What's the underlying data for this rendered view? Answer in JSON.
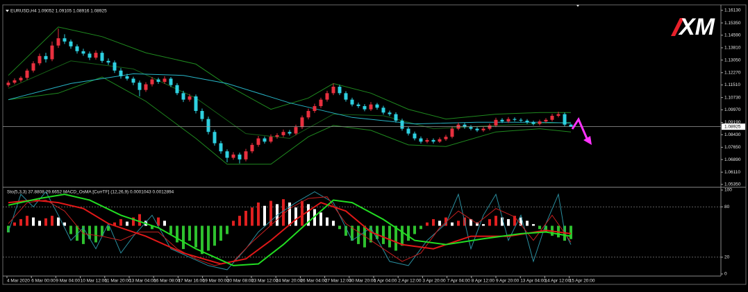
{
  "logo": "XM",
  "chart_data": [
    {
      "type": "candlestick",
      "title": "EURUSD,H4  1.09052 1.09105 1.08916 1.08925",
      "colors": {
        "up": "#e8303e",
        "down": "#2ed0e0"
      },
      "ylim": [
        1.0526,
        1.1634
      ],
      "yticks": [
        {
          "value": 1.1613,
          "label": "1.16130"
        },
        {
          "value": 1.1535,
          "label": "1.15350"
        },
        {
          "value": 1.1459,
          "label": "1.14590"
        },
        {
          "value": 1.1381,
          "label": "1.13810"
        },
        {
          "value": 1.1305,
          "label": "1.13050"
        },
        {
          "value": 1.1227,
          "label": "1.12270"
        },
        {
          "value": 1.1151,
          "label": "1.11510"
        },
        {
          "value": 1.1073,
          "label": "1.10730"
        },
        {
          "value": 1.0997,
          "label": "1.09970"
        },
        {
          "value": 1.0919,
          "label": "1.09190"
        },
        {
          "value": 1.0843,
          "label": "1.08430"
        },
        {
          "value": 1.0765,
          "label": "1.07650"
        },
        {
          "value": 1.0689,
          "label": "1.06890"
        },
        {
          "value": 1.0611,
          "label": "1.06110"
        },
        {
          "value": 1.0535,
          "label": "1.05350"
        }
      ],
      "current_price": {
        "value": 1.08925,
        "label": "1.08925"
      },
      "open": [
        1.115,
        1.1165,
        1.118,
        1.1195,
        1.124,
        1.1285,
        1.133,
        1.131,
        1.1395,
        1.144,
        1.142,
        1.139,
        1.136,
        1.1345,
        1.132,
        1.135,
        1.13,
        1.129,
        1.124,
        1.1205,
        1.119,
        1.1165,
        1.112,
        1.1155,
        1.1185,
        1.117,
        1.119,
        1.115,
        1.11,
        1.106,
        1.108,
        1.099,
        1.094,
        1.086,
        1.079,
        1.074,
        1.07,
        1.072,
        1.069,
        1.074,
        1.078,
        1.082,
        1.08,
        1.083,
        1.084,
        1.086,
        1.085,
        1.089,
        1.095,
        1.099,
        1.102,
        1.106,
        1.11,
        1.114,
        1.11,
        1.106,
        1.103,
        1.102,
        1.1,
        1.103,
        1.101,
        1.098,
        1.097,
        1.093,
        1.088,
        1.085,
        1.082,
        1.08,
        1.081,
        1.08,
        1.0815,
        1.083,
        1.088,
        1.0905,
        1.089,
        1.088,
        1.087,
        1.088,
        1.09,
        1.0935,
        1.0925,
        1.094,
        1.0935,
        1.093,
        1.092,
        1.091,
        1.0925,
        1.0935,
        1.096,
        1.097,
        1.09052
      ],
      "high": [
        1.1178,
        1.1192,
        1.1205,
        1.1252,
        1.1298,
        1.1345,
        1.135,
        1.142,
        1.15,
        1.1465,
        1.1432,
        1.1402,
        1.1375,
        1.1358,
        1.1365,
        1.1362,
        1.1315,
        1.1302,
        1.1255,
        1.122,
        1.1202,
        1.1178,
        1.1168,
        1.12,
        1.1196,
        1.1205,
        1.12,
        1.1162,
        1.1115,
        1.1095,
        1.1092,
        1.1005,
        1.0955,
        1.0872,
        1.0805,
        1.0752,
        1.0735,
        1.0732,
        1.0755,
        1.0792,
        1.0835,
        1.0832,
        1.0845,
        1.0852,
        1.0875,
        1.0872,
        1.0905,
        1.0962,
        1.1005,
        1.1035,
        1.1072,
        1.1115,
        1.116,
        1.1152,
        1.1112,
        1.1072,
        1.1042,
        1.1032,
        1.1045,
        1.104,
        1.1022,
        1.0992,
        1.0982,
        1.0942,
        1.0892,
        1.0862,
        1.0832,
        1.0822,
        1.082,
        1.0826,
        1.0842,
        1.0895,
        1.0918,
        1.0915,
        1.0902,
        1.089,
        1.0892,
        1.0912,
        1.0948,
        1.0945,
        1.0952,
        1.095,
        1.0945,
        1.094,
        1.093,
        1.0936,
        1.0946,
        1.0972,
        1.0985,
        1.098,
        1.09105
      ],
      "low": [
        1.1138,
        1.1155,
        1.1168,
        1.1183,
        1.1228,
        1.1272,
        1.129,
        1.1298,
        1.138,
        1.1405,
        1.1375,
        1.1345,
        1.1332,
        1.1305,
        1.1308,
        1.1288,
        1.1275,
        1.1225,
        1.119,
        1.1178,
        1.115,
        1.108,
        1.1108,
        1.1142,
        1.1158,
        1.1158,
        1.1138,
        1.1088,
        1.1045,
        1.1048,
        1.0975,
        1.0925,
        1.0845,
        1.0775,
        1.0725,
        1.0672,
        1.0688,
        1.0665,
        1.0678,
        1.0728,
        1.0768,
        1.0788,
        1.079,
        1.0818,
        1.0828,
        1.0838,
        1.084,
        1.0878,
        1.0938,
        1.0978,
        1.1008,
        1.1048,
        1.1088,
        1.1088,
        1.1048,
        1.1018,
        1.1008,
        1.0988,
        1.099,
        1.0998,
        1.0968,
        1.0958,
        1.0918,
        1.0868,
        1.0838,
        1.0808,
        1.0788,
        1.079,
        1.0788,
        1.0792,
        1.0805,
        1.082,
        1.087,
        1.088,
        1.087,
        1.086,
        1.086,
        1.087,
        1.089,
        1.0915,
        1.0915,
        1.0925,
        1.092,
        1.091,
        1.09,
        1.09,
        1.0915,
        1.0925,
        1.095,
        1.0895,
        1.08916
      ],
      "close": [
        1.1165,
        1.118,
        1.1195,
        1.124,
        1.1285,
        1.133,
        1.131,
        1.1395,
        1.144,
        1.142,
        1.139,
        1.136,
        1.1345,
        1.132,
        1.135,
        1.13,
        1.129,
        1.124,
        1.1205,
        1.119,
        1.1165,
        1.112,
        1.1155,
        1.1185,
        1.117,
        1.119,
        1.115,
        1.11,
        1.106,
        1.108,
        1.099,
        1.094,
        1.086,
        1.079,
        1.074,
        1.07,
        1.072,
        1.069,
        1.074,
        1.078,
        1.082,
        1.08,
        1.083,
        1.084,
        1.086,
        1.085,
        1.089,
        1.095,
        1.099,
        1.102,
        1.106,
        1.11,
        1.114,
        1.11,
        1.106,
        1.103,
        1.102,
        1.1,
        1.103,
        1.101,
        1.098,
        1.097,
        1.093,
        1.088,
        1.085,
        1.082,
        1.08,
        1.081,
        1.08,
        1.0815,
        1.083,
        1.088,
        1.0905,
        1.089,
        1.088,
        1.087,
        1.088,
        1.09,
        1.0935,
        1.0925,
        1.094,
        1.0935,
        1.093,
        1.092,
        1.091,
        1.0925,
        1.0935,
        1.096,
        1.097,
        1.09052,
        1.08925
      ],
      "overlays": [
        {
          "color": "#1f8a1f",
          "width": 1,
          "x": [
            0,
            8,
            15,
            22,
            30,
            35,
            42,
            48,
            52,
            58,
            64,
            70,
            78,
            85,
            90
          ],
          "values": [
            1.121,
            1.151,
            1.145,
            1.135,
            1.128,
            1.115,
            1.1,
            1.107,
            1.116,
            1.11,
            1.1,
            1.094,
            1.097,
            1.098,
            1.098
          ]
        },
        {
          "color": "#1f8a1f",
          "width": 1,
          "x": [
            0,
            8,
            15,
            22,
            30,
            35,
            42,
            48,
            52,
            58,
            64,
            70,
            78,
            85,
            90
          ],
          "values": [
            1.106,
            1.11,
            1.12,
            1.105,
            1.082,
            1.066,
            1.066,
            1.083,
            1.09,
            1.087,
            1.078,
            1.077,
            1.086,
            1.088,
            1.086
          ]
        },
        {
          "color": "#176017",
          "width": 1,
          "x": [
            0,
            10,
            20,
            30,
            38,
            45,
            52,
            60,
            68,
            78,
            90
          ],
          "values": [
            1.113,
            1.13,
            1.125,
            1.107,
            1.085,
            1.082,
            1.097,
            1.096,
            1.088,
            1.09,
            1.092
          ]
        },
        {
          "color": "#27b6c8",
          "width": 1,
          "x": [
            0,
            10,
            20,
            28,
            35,
            45,
            55,
            65,
            75,
            85,
            90
          ],
          "values": [
            1.106,
            1.116,
            1.122,
            1.121,
            1.116,
            1.104,
            1.095,
            1.091,
            1.092,
            1.092,
            1.0915
          ]
        }
      ]
    },
    {
      "type": "oscillator",
      "title": "Sto(5,3,3) 37.8808 29.6652  MACD_OsMA [CurrTF] (12,26,9) 0.0001043 0.0012894",
      "ylim": [
        0,
        100
      ],
      "yticks": [
        100,
        80,
        20,
        0
      ],
      "histogram": {
        "ylim": [
          -0.0058,
          0.0043
        ],
        "colors": {
          "rising": "#e02020",
          "falling": "#ffffff",
          "negative": "#2ec02e"
        },
        "values": [
          -0.0008,
          0.0004,
          0.0008,
          0.0012,
          0.001,
          0.0006,
          0.0009,
          0.0012,
          0.001,
          0.0004,
          -0.001,
          -0.0018,
          -0.0022,
          -0.0016,
          -0.002,
          -0.0012,
          -0.0006,
          0.0004,
          0.0008,
          0.0005,
          0.001,
          0.0014,
          0.0006,
          -0.0004,
          0.001,
          0.0006,
          -0.001,
          -0.002,
          -0.0028,
          -0.0018,
          -0.0026,
          -0.0034,
          -0.003,
          -0.0024,
          -0.0018,
          -0.001,
          0.0006,
          0.0012,
          0.0018,
          0.0022,
          0.0028,
          0.0024,
          0.003,
          0.0026,
          0.0032,
          0.0028,
          0.0022,
          0.003,
          0.0026,
          0.002,
          0.0016,
          0.001,
          0.0006,
          -0.0004,
          -0.0012,
          -0.0018,
          -0.0022,
          -0.0026,
          -0.002,
          -0.0016,
          -0.0022,
          -0.0026,
          -0.003,
          -0.0024,
          -0.0018,
          -0.001,
          -0.0004,
          0.0004,
          0.0008,
          0.0006,
          0.001,
          0.0004,
          0.0006,
          0.001,
          0.0008,
          0.0004,
          0.0002,
          0.0008,
          0.0012,
          0.001,
          0.0008,
          0.0012,
          0.001,
          0.0006,
          0.0002,
          -0.0004,
          -0.0008,
          -0.0012,
          -0.0014,
          -0.0018,
          -0.0016
        ]
      },
      "lines": [
        {
          "color": "#2a8fa0",
          "width": 1,
          "x": [
            0,
            2,
            4,
            6,
            8,
            10,
            12,
            14,
            16,
            18,
            20,
            23,
            26,
            29,
            32,
            35,
            38,
            40,
            43,
            46,
            49,
            52,
            55,
            58,
            61,
            64,
            67,
            70,
            72,
            74,
            76,
            78,
            80,
            82,
            84,
            86,
            88,
            89,
            90
          ],
          "values": [
            50,
            95,
            80,
            98,
            70,
            40,
            55,
            30,
            60,
            25,
            45,
            70,
            30,
            20,
            10,
            5,
            30,
            50,
            70,
            85,
            98,
            85,
            40,
            55,
            15,
            10,
            40,
            60,
            95,
            30,
            70,
            95,
            40,
            70,
            15,
            60,
            95,
            50,
            35
          ]
        },
        {
          "color": "#c42020",
          "width": 1,
          "x": [
            0,
            3,
            6,
            9,
            12,
            15,
            18,
            21,
            24,
            27,
            30,
            33,
            36,
            39,
            42,
            45,
            48,
            51,
            54,
            57,
            60,
            63,
            66,
            69,
            72,
            75,
            78,
            81,
            84,
            87,
            90
          ],
          "values": [
            60,
            85,
            88,
            75,
            48,
            45,
            40,
            50,
            50,
            30,
            18,
            10,
            15,
            38,
            58,
            78,
            90,
            92,
            60,
            45,
            30,
            15,
            25,
            55,
            75,
            60,
            78,
            68,
            40,
            70,
            38
          ]
        },
        {
          "color": "#e01818",
          "width": 2,
          "x": [
            0,
            4,
            8,
            12,
            16,
            22,
            28,
            34,
            38,
            42,
            46,
            50,
            54,
            58,
            63,
            68,
            74,
            80,
            86,
            90
          ],
          "values": [
            85,
            88,
            85,
            78,
            60,
            45,
            25,
            12,
            18,
            40,
            65,
            85,
            75,
            50,
            35,
            30,
            45,
            45,
            52,
            48
          ]
        },
        {
          "color": "#22dd22",
          "width": 2,
          "x": [
            0,
            5,
            9,
            13,
            18,
            24,
            30,
            36,
            40,
            44,
            48,
            52,
            55,
            60,
            65,
            70,
            76,
            82,
            86,
            90
          ],
          "values": [
            82,
            90,
            95,
            88,
            70,
            55,
            30,
            10,
            12,
            35,
            62,
            88,
            85,
            65,
            40,
            35,
            42,
            48,
            50,
            45
          ]
        }
      ],
      "x_labels": [
        "4 Mar 2020",
        "6 Mar 00:00",
        "9 Mar 04:00",
        "10 Mar 12:00",
        "11 Mar 20:00",
        "13 Mar 04:00",
        "16 Mar 08:00",
        "17 Mar 16:00",
        "19 Mar 00:00",
        "20 Mar 08:00",
        "23 Mar 12:00",
        "24 Mar 20:00",
        "26 Mar 04:00",
        "27 Mar 12:00",
        "30 Mar 20:00",
        "1 Apr 04:00",
        "2 Apr 12:00",
        "3 Apr 20:00",
        "7 Apr 04:00",
        "8 Apr 12:00",
        "9 Apr 20:00",
        "13 Apr 04:00",
        "14 Apr 12:00",
        "15 Apr 20:00"
      ]
    }
  ]
}
